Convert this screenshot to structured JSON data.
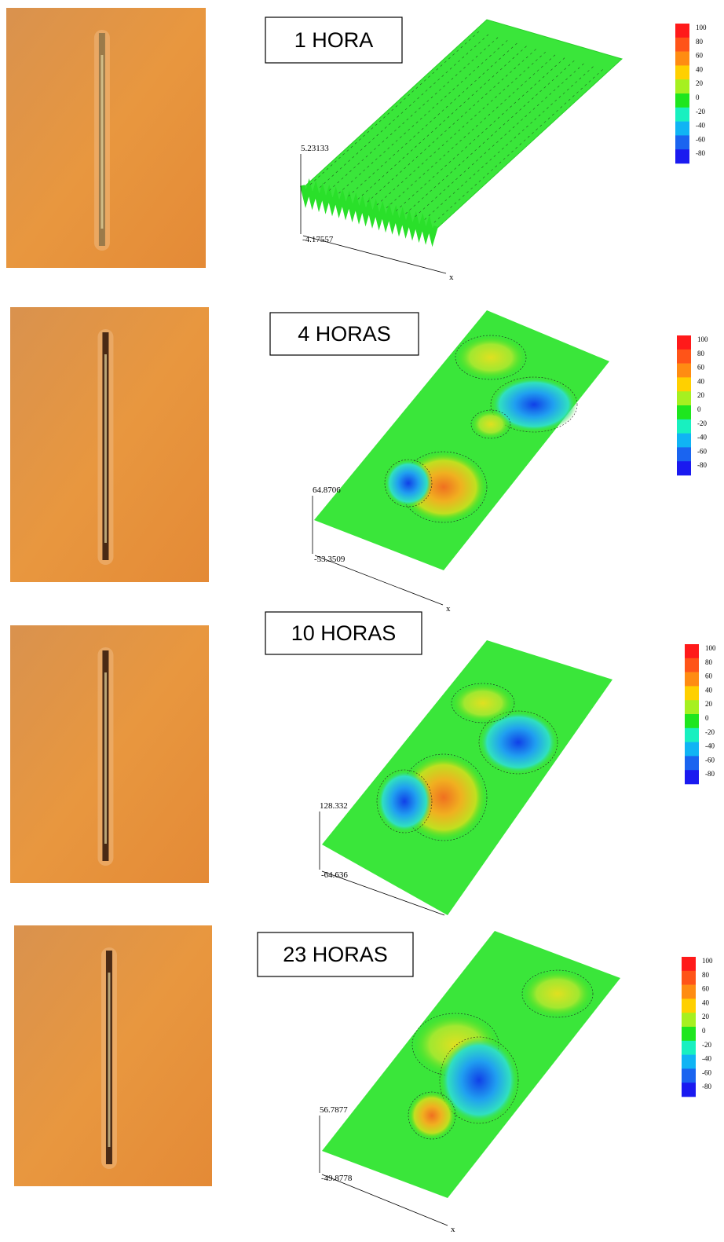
{
  "panels": [
    {
      "label": "1 HORA",
      "z_max": "5.23133",
      "z_min": "-4.17557",
      "x_axis": "x",
      "colorbar": [
        100,
        80,
        60,
        40,
        20,
        0,
        -20,
        -40,
        -60,
        -80
      ]
    },
    {
      "label": "4 HORAS",
      "z_max": "64.8706",
      "z_min": "-53.3509",
      "x_axis": "x",
      "colorbar": [
        100,
        80,
        60,
        40,
        20,
        0,
        -20,
        -40,
        -60,
        -80
      ]
    },
    {
      "label": "10 HORAS",
      "z_max": "128.332",
      "z_min": "-64.636",
      "colorbar": [
        100,
        80,
        60,
        40,
        20,
        0,
        -20,
        -40,
        -60,
        -80
      ]
    },
    {
      "label": "23 HORAS",
      "z_max": "56.7877",
      "z_min": "-49.8778",
      "x_axis": "x",
      "colorbar": [
        100,
        80,
        60,
        40,
        20,
        0,
        -20,
        -40,
        -60,
        -80
      ]
    }
  ]
}
